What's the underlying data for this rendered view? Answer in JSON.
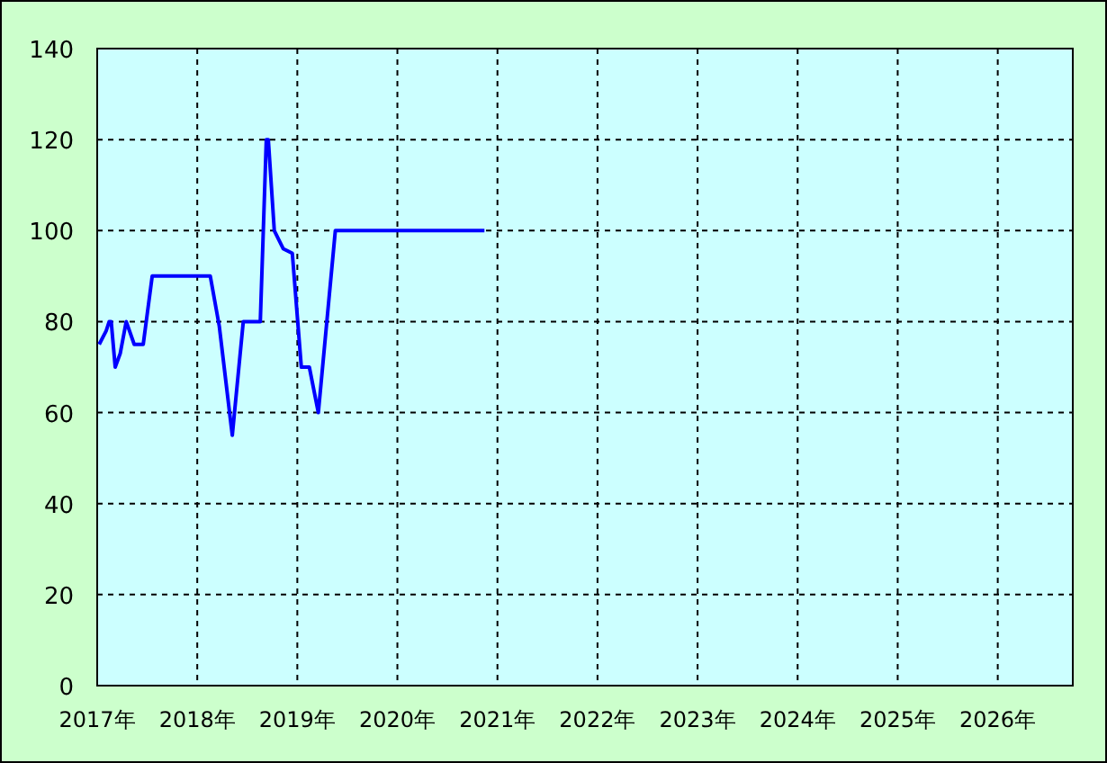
{
  "chart_data": {
    "type": "line",
    "x": [
      2017.02,
      2017.09,
      2017.12,
      2017.14,
      2017.18,
      2017.23,
      2017.29,
      2017.37,
      2017.46,
      2017.55,
      2018.13,
      2018.22,
      2018.35,
      2018.46,
      2018.63,
      2018.69,
      2018.71,
      2018.77,
      2018.86,
      2018.95,
      2019.04,
      2019.12,
      2019.21,
      2019.38,
      2020.87
    ],
    "series": [
      {
        "color": "#0000ff",
        "values": [
          75,
          78,
          80,
          80,
          70,
          73,
          80,
          75,
          75,
          90,
          90,
          79,
          55,
          80,
          80,
          120,
          120,
          100,
          96,
          95,
          70,
          70,
          60,
          100,
          100
        ]
      }
    ],
    "xlim": [
      2017,
      2026.75
    ],
    "xticks": [
      {
        "value": 2017,
        "label": "2017年"
      },
      {
        "value": 2018,
        "label": "2018年"
      },
      {
        "value": 2019,
        "label": "2019年"
      },
      {
        "value": 2020,
        "label": "2020年"
      },
      {
        "value": 2021,
        "label": "2021年"
      },
      {
        "value": 2022,
        "label": "2022年"
      },
      {
        "value": 2023,
        "label": "2023年"
      },
      {
        "value": 2024,
        "label": "2024年"
      },
      {
        "value": 2025,
        "label": "2025年"
      },
      {
        "value": 2026,
        "label": "2026年"
      }
    ],
    "ylim": [
      0,
      140
    ],
    "yticks": [
      0,
      20,
      40,
      60,
      80,
      100,
      120,
      140
    ],
    "grid": true,
    "marker": "none",
    "line_style": "solid"
  }
}
